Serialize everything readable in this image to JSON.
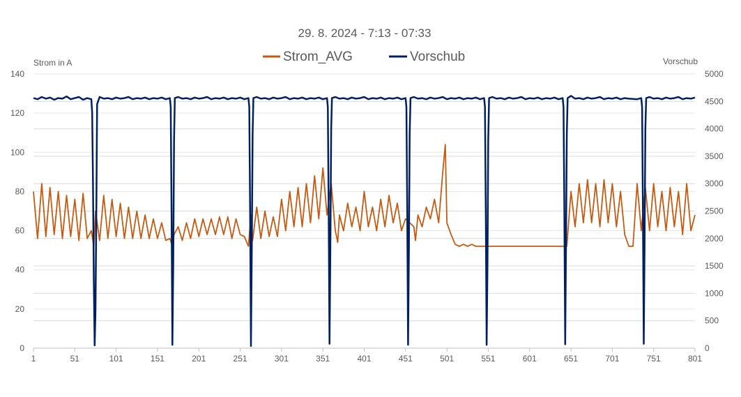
{
  "chart_data": {
    "type": "line",
    "title": "29. 8. 2024  - 7:13 - 07:33",
    "y_left_label": "Strom in A",
    "y_right_label": "Vorschub",
    "ylim_left": [
      0,
      140
    ],
    "ylim_right": [
      0,
      5000
    ],
    "xlim": [
      1,
      801
    ],
    "x_ticks": [
      "1",
      "51",
      "101",
      "151",
      "201",
      "251",
      "301",
      "351",
      "401",
      "451",
      "501",
      "551",
      "601",
      "651",
      "701",
      "751",
      "801"
    ],
    "y_left_ticks": [
      "0",
      "20",
      "40",
      "60",
      "80",
      "100",
      "120",
      "140"
    ],
    "y_right_ticks": [
      "0",
      "500",
      "1000",
      "1500",
      "2000",
      "2500",
      "3000",
      "3500",
      "4000",
      "4500",
      "5000"
    ],
    "grid": true,
    "legend_position": "top",
    "series": [
      {
        "name": "Strom_AVG",
        "axis": "left",
        "color": "#C55A11",
        "x": [
          1,
          6,
          11,
          16,
          21,
          26,
          31,
          36,
          41,
          46,
          51,
          56,
          61,
          66,
          71,
          74,
          76,
          81,
          86,
          91,
          96,
          101,
          106,
          111,
          116,
          121,
          126,
          131,
          136,
          141,
          146,
          151,
          156,
          161,
          166,
          169,
          171,
          176,
          181,
          186,
          191,
          196,
          201,
          206,
          211,
          216,
          221,
          226,
          231,
          236,
          241,
          246,
          251,
          256,
          261,
          264,
          266,
          271,
          276,
          281,
          286,
          291,
          296,
          301,
          306,
          311,
          316,
          321,
          326,
          331,
          336,
          341,
          346,
          351,
          356,
          361,
          366,
          369,
          371,
          376,
          381,
          386,
          391,
          396,
          401,
          406,
          411,
          416,
          421,
          426,
          431,
          436,
          441,
          446,
          451,
          456,
          461,
          463,
          466,
          471,
          476,
          481,
          486,
          491,
          496,
          499,
          501,
          506,
          511,
          516,
          521,
          526,
          531,
          536,
          541,
          546,
          551,
          556,
          561,
          566,
          571,
          576,
          581,
          586,
          591,
          596,
          601,
          606,
          611,
          616,
          621,
          626,
          631,
          636,
          641,
          646,
          651,
          656,
          661,
          666,
          671,
          676,
          681,
          686,
          691,
          696,
          701,
          706,
          711,
          716,
          721,
          726,
          731,
          736,
          741,
          746,
          751,
          756,
          761,
          766,
          771,
          776,
          781,
          786,
          791,
          796,
          801
        ],
        "values": [
          80,
          56,
          84,
          57,
          82,
          58,
          80,
          56,
          78,
          57,
          76,
          55,
          79,
          56,
          60,
          52,
          70,
          55,
          78,
          56,
          76,
          57,
          74,
          56,
          72,
          56,
          70,
          56,
          68,
          56,
          66,
          56,
          64,
          55,
          56,
          52,
          58,
          62,
          55,
          64,
          56,
          66,
          57,
          66,
          58,
          66,
          58,
          67,
          58,
          67,
          56,
          66,
          58,
          57,
          52,
          68,
          55,
          72,
          56,
          70,
          57,
          67,
          57,
          76,
          60,
          80,
          62,
          82,
          62,
          84,
          64,
          88,
          66,
          92,
          68,
          84,
          60,
          54,
          68,
          60,
          74,
          62,
          72,
          60,
          80,
          62,
          72,
          60,
          76,
          62,
          78,
          64,
          74,
          60,
          66,
          64,
          62,
          55,
          68,
          62,
          72,
          66,
          76,
          64,
          90,
          104,
          64,
          58,
          53,
          52,
          53,
          52,
          53,
          52,
          52,
          52,
          52,
          52,
          52,
          52,
          52,
          52,
          52,
          52,
          52,
          52,
          52,
          52,
          52,
          52,
          52,
          52,
          52,
          52,
          52,
          52,
          80,
          62,
          84,
          64,
          86,
          64,
          84,
          62,
          86,
          64,
          84,
          62,
          80,
          58,
          52,
          52,
          84,
          60,
          82,
          60,
          84,
          62,
          80,
          60,
          82,
          62,
          80,
          58,
          84,
          60,
          68
        ]
      },
      {
        "name": "Vorschub",
        "axis": "right",
        "color": "#002060",
        "x": [
          1,
          6,
          11,
          16,
          21,
          26,
          31,
          36,
          41,
          46,
          51,
          56,
          61,
          66,
          71,
          72,
          73,
          74,
          75,
          76,
          77,
          78,
          81,
          86,
          91,
          96,
          101,
          106,
          111,
          116,
          121,
          126,
          131,
          136,
          141,
          146,
          151,
          156,
          161,
          166,
          167,
          168,
          169,
          170,
          171,
          172,
          176,
          181,
          186,
          191,
          196,
          201,
          206,
          211,
          216,
          221,
          226,
          231,
          236,
          241,
          246,
          251,
          256,
          261,
          262,
          263,
          264,
          265,
          266,
          267,
          271,
          276,
          281,
          286,
          291,
          296,
          301,
          306,
          311,
          316,
          321,
          326,
          331,
          336,
          341,
          346,
          351,
          356,
          357,
          358,
          359,
          360,
          361,
          362,
          366,
          371,
          376,
          381,
          386,
          391,
          396,
          401,
          406,
          411,
          416,
          421,
          426,
          431,
          436,
          441,
          446,
          451,
          452,
          453,
          454,
          455,
          456,
          457,
          461,
          466,
          471,
          476,
          481,
          486,
          491,
          496,
          501,
          506,
          511,
          516,
          521,
          526,
          531,
          536,
          541,
          546,
          547,
          548,
          549,
          550,
          551,
          552,
          556,
          561,
          566,
          571,
          576,
          581,
          586,
          591,
          596,
          601,
          606,
          611,
          616,
          621,
          626,
          631,
          636,
          641,
          642,
          643,
          644,
          645,
          646,
          647,
          651,
          656,
          661,
          666,
          671,
          676,
          681,
          686,
          691,
          696,
          701,
          706,
          711,
          716,
          721,
          731,
          736,
          737,
          738,
          739,
          740,
          741,
          742,
          746,
          751,
          756,
          761,
          766,
          771,
          776,
          781,
          786,
          791,
          796,
          801
        ],
        "values": [
          4560,
          4540,
          4580,
          4550,
          4570,
          4530,
          4560,
          4550,
          4590,
          4540,
          4560,
          4580,
          4530,
          4560,
          4540,
          4300,
          3000,
          1200,
          50,
          700,
          2500,
          4450,
          4580,
          4550,
          4560,
          4540,
          4570,
          4550,
          4560,
          4580,
          4540,
          4560,
          4550,
          4570,
          4540,
          4560,
          4550,
          4570,
          4540,
          4560,
          4400,
          2500,
          60,
          1500,
          3800,
          4560,
          4580,
          4550,
          4560,
          4540,
          4570,
          4550,
          4560,
          4580,
          4540,
          4560,
          4550,
          4570,
          4540,
          4560,
          4550,
          4570,
          4540,
          4560,
          4400,
          2500,
          40,
          1800,
          3900,
          4560,
          4580,
          4550,
          4560,
          4540,
          4570,
          4550,
          4560,
          4580,
          4540,
          4560,
          4550,
          4570,
          4540,
          4560,
          4550,
          4570,
          4540,
          4560,
          4400,
          2500,
          80,
          1800,
          4000,
          4560,
          4580,
          4550,
          4560,
          4540,
          4570,
          4550,
          4560,
          4580,
          4540,
          4560,
          4550,
          4570,
          4540,
          4560,
          4550,
          4570,
          4540,
          4560,
          4400,
          2500,
          60,
          1800,
          3900,
          4560,
          4580,
          4550,
          4560,
          4540,
          4570,
          4550,
          4560,
          4580,
          4540,
          4560,
          4550,
          4570,
          4540,
          4560,
          4550,
          4570,
          4540,
          4560,
          4400,
          2500,
          60,
          1500,
          3800,
          4560,
          4580,
          4550,
          4560,
          4540,
          4570,
          4550,
          4560,
          4580,
          4540,
          4560,
          4550,
          4570,
          4540,
          4560,
          4550,
          4570,
          4540,
          4560,
          4400,
          2500,
          70,
          1800,
          3900,
          4560,
          4600,
          4550,
          4560,
          4540,
          4570,
          4550,
          4560,
          4580,
          4540,
          4560,
          4550,
          4570,
          4540,
          4560,
          4550,
          4540,
          4560,
          4400,
          2500,
          80,
          1800,
          4000,
          4560,
          4580,
          4550,
          4560,
          4540,
          4570,
          4550,
          4560,
          4580,
          4540,
          4560,
          4550,
          4570
        ]
      }
    ]
  }
}
